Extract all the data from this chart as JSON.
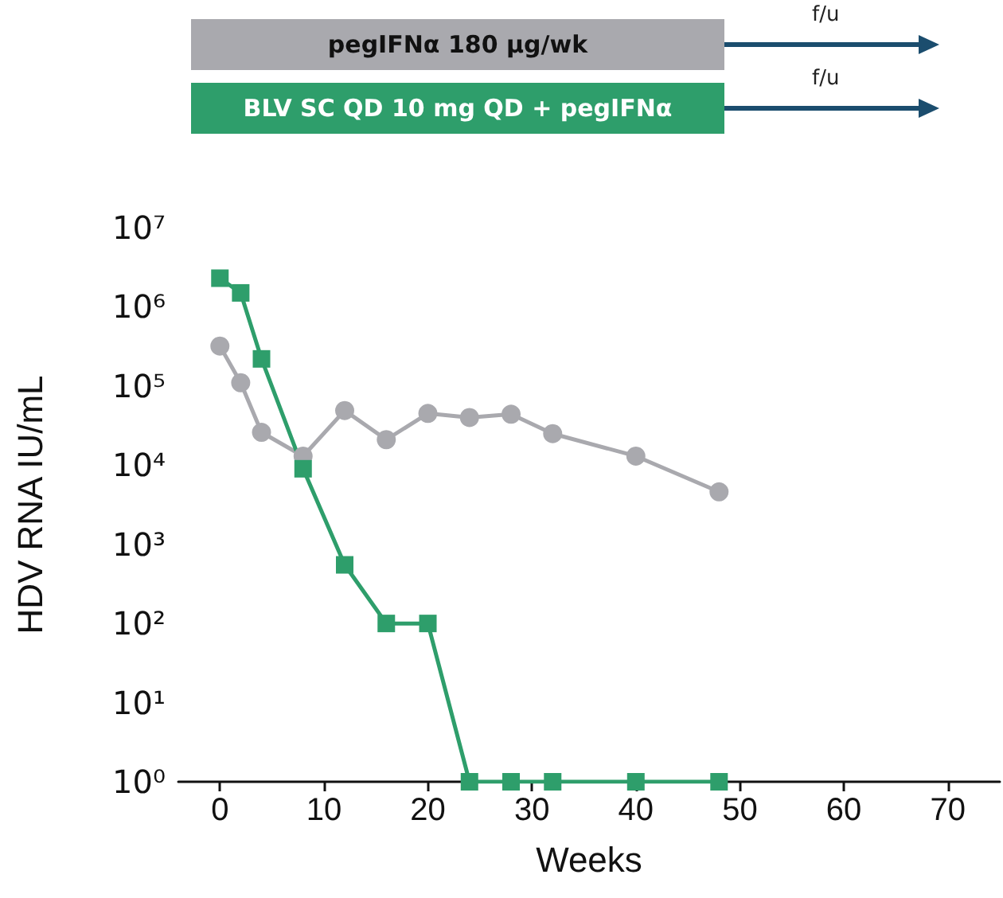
{
  "chart_data": {
    "type": "line",
    "xlabel": "Weeks",
    "ylabel": "HDV RNA IU/mL",
    "log": "y",
    "legend": "top",
    "line_style": "solid",
    "grid": false,
    "annotations": [
      "f/u",
      "f/u"
    ],
    "xlim": [
      -4,
      75
    ],
    "xticks": [
      0,
      10,
      20,
      30,
      40,
      50,
      60,
      70
    ],
    "ylim": [
      1,
      10000000
    ],
    "yticks": [
      {
        "value": 1,
        "label": "10⁰"
      },
      {
        "value": 10,
        "label": "10¹"
      },
      {
        "value": 100,
        "label": "10²"
      },
      {
        "value": 1000,
        "label": "10³"
      },
      {
        "value": 10000,
        "label": "10⁴"
      },
      {
        "value": 100000,
        "label": "10⁵"
      },
      {
        "value": 1000000,
        "label": "10⁶"
      },
      {
        "value": 10000000,
        "label": "10⁷"
      }
    ],
    "series": [
      {
        "name": "pegIFNα 180 µg/wk",
        "color": "#a9a9ae",
        "marker": "circle",
        "x": [
          0,
          2,
          4,
          8,
          12,
          16,
          20,
          24,
          28,
          32,
          40,
          48
        ],
        "values": [
          320000,
          110000,
          26000,
          13000,
          49000,
          21000,
          45000,
          40000,
          44000,
          25000,
          13000,
          4600
        ]
      },
      {
        "name": "BLV SC QD 10 mg QD + pegIFNα",
        "color": "#2e9e6b",
        "marker": "square",
        "x": [
          0,
          2,
          4,
          8,
          12,
          16,
          20,
          24,
          28,
          32,
          40,
          48
        ],
        "values": [
          2300000,
          1500000,
          220000,
          9000,
          550,
          100,
          100,
          1,
          1,
          1,
          1,
          1
        ]
      }
    ]
  }
}
